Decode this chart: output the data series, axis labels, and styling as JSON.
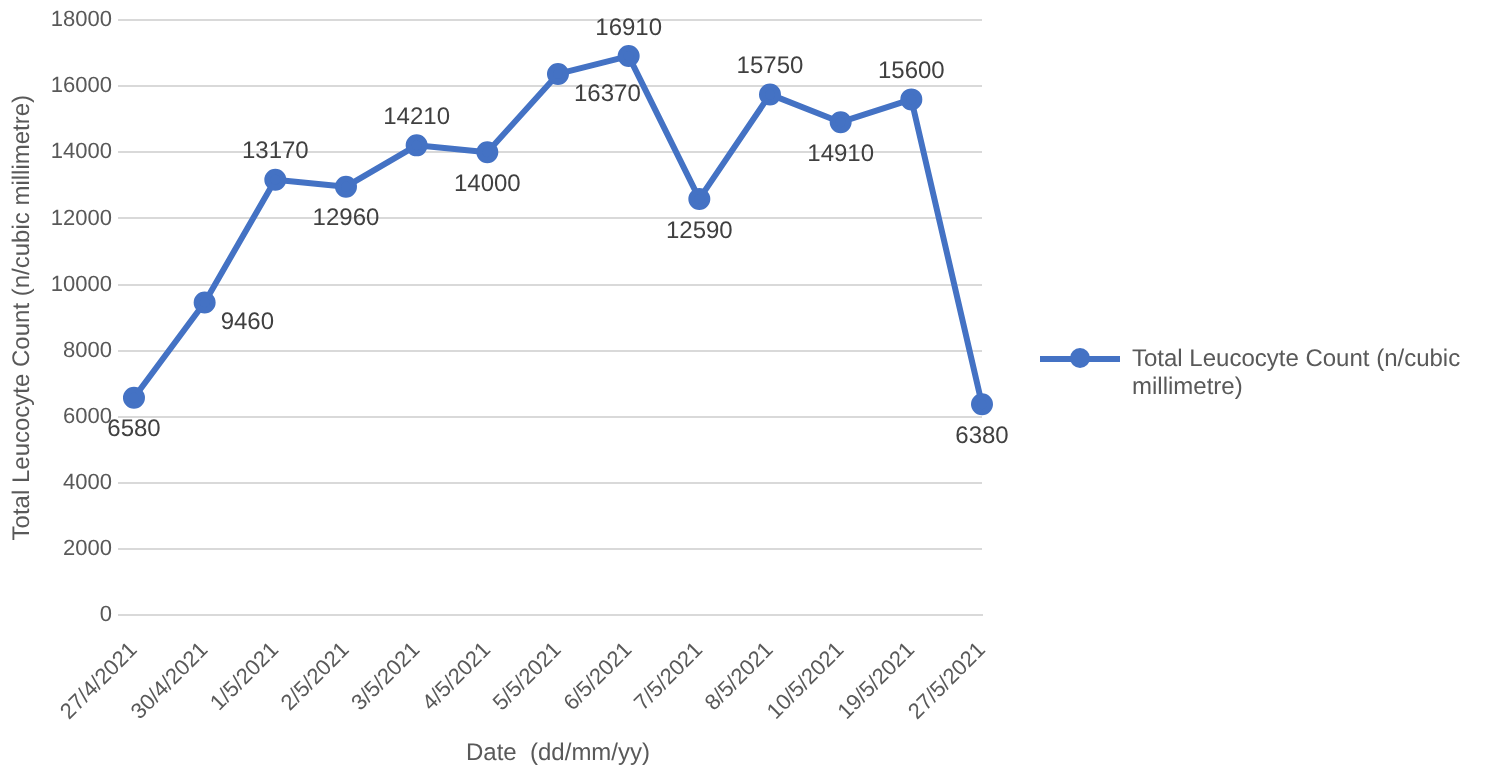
{
  "chart_data": {
    "type": "line",
    "xlabel": "Date  (dd/mm/yy)",
    "ylabel": "Total Leucocyte Count (n/cubic millimetre)",
    "categories": [
      "27/4/2021",
      "30/4/2021",
      "1/5/2021",
      "2/5/2021",
      "3/5/2021",
      "4/5/2021",
      "5/5/2021",
      "6/5/2021",
      "7/5/2021",
      "8/5/2021",
      "10/5/2021",
      "19/5/2021",
      "27/5/2021"
    ],
    "series": [
      {
        "name": "Total Leucocyte Count (n/cubic millimetre)",
        "color": "#4472c4",
        "values": [
          6580,
          9460,
          13170,
          12960,
          14210,
          14000,
          16370,
          16910,
          12590,
          15750,
          14910,
          15600,
          6380
        ]
      }
    ],
    "ylim": [
      0,
      18000
    ],
    "yticks": [
      0,
      2000,
      4000,
      6000,
      8000,
      10000,
      12000,
      14000,
      16000,
      18000
    ],
    "grid": "y",
    "legend": "right",
    "marker": "circle",
    "line_style": "solid",
    "data_labels": true
  }
}
